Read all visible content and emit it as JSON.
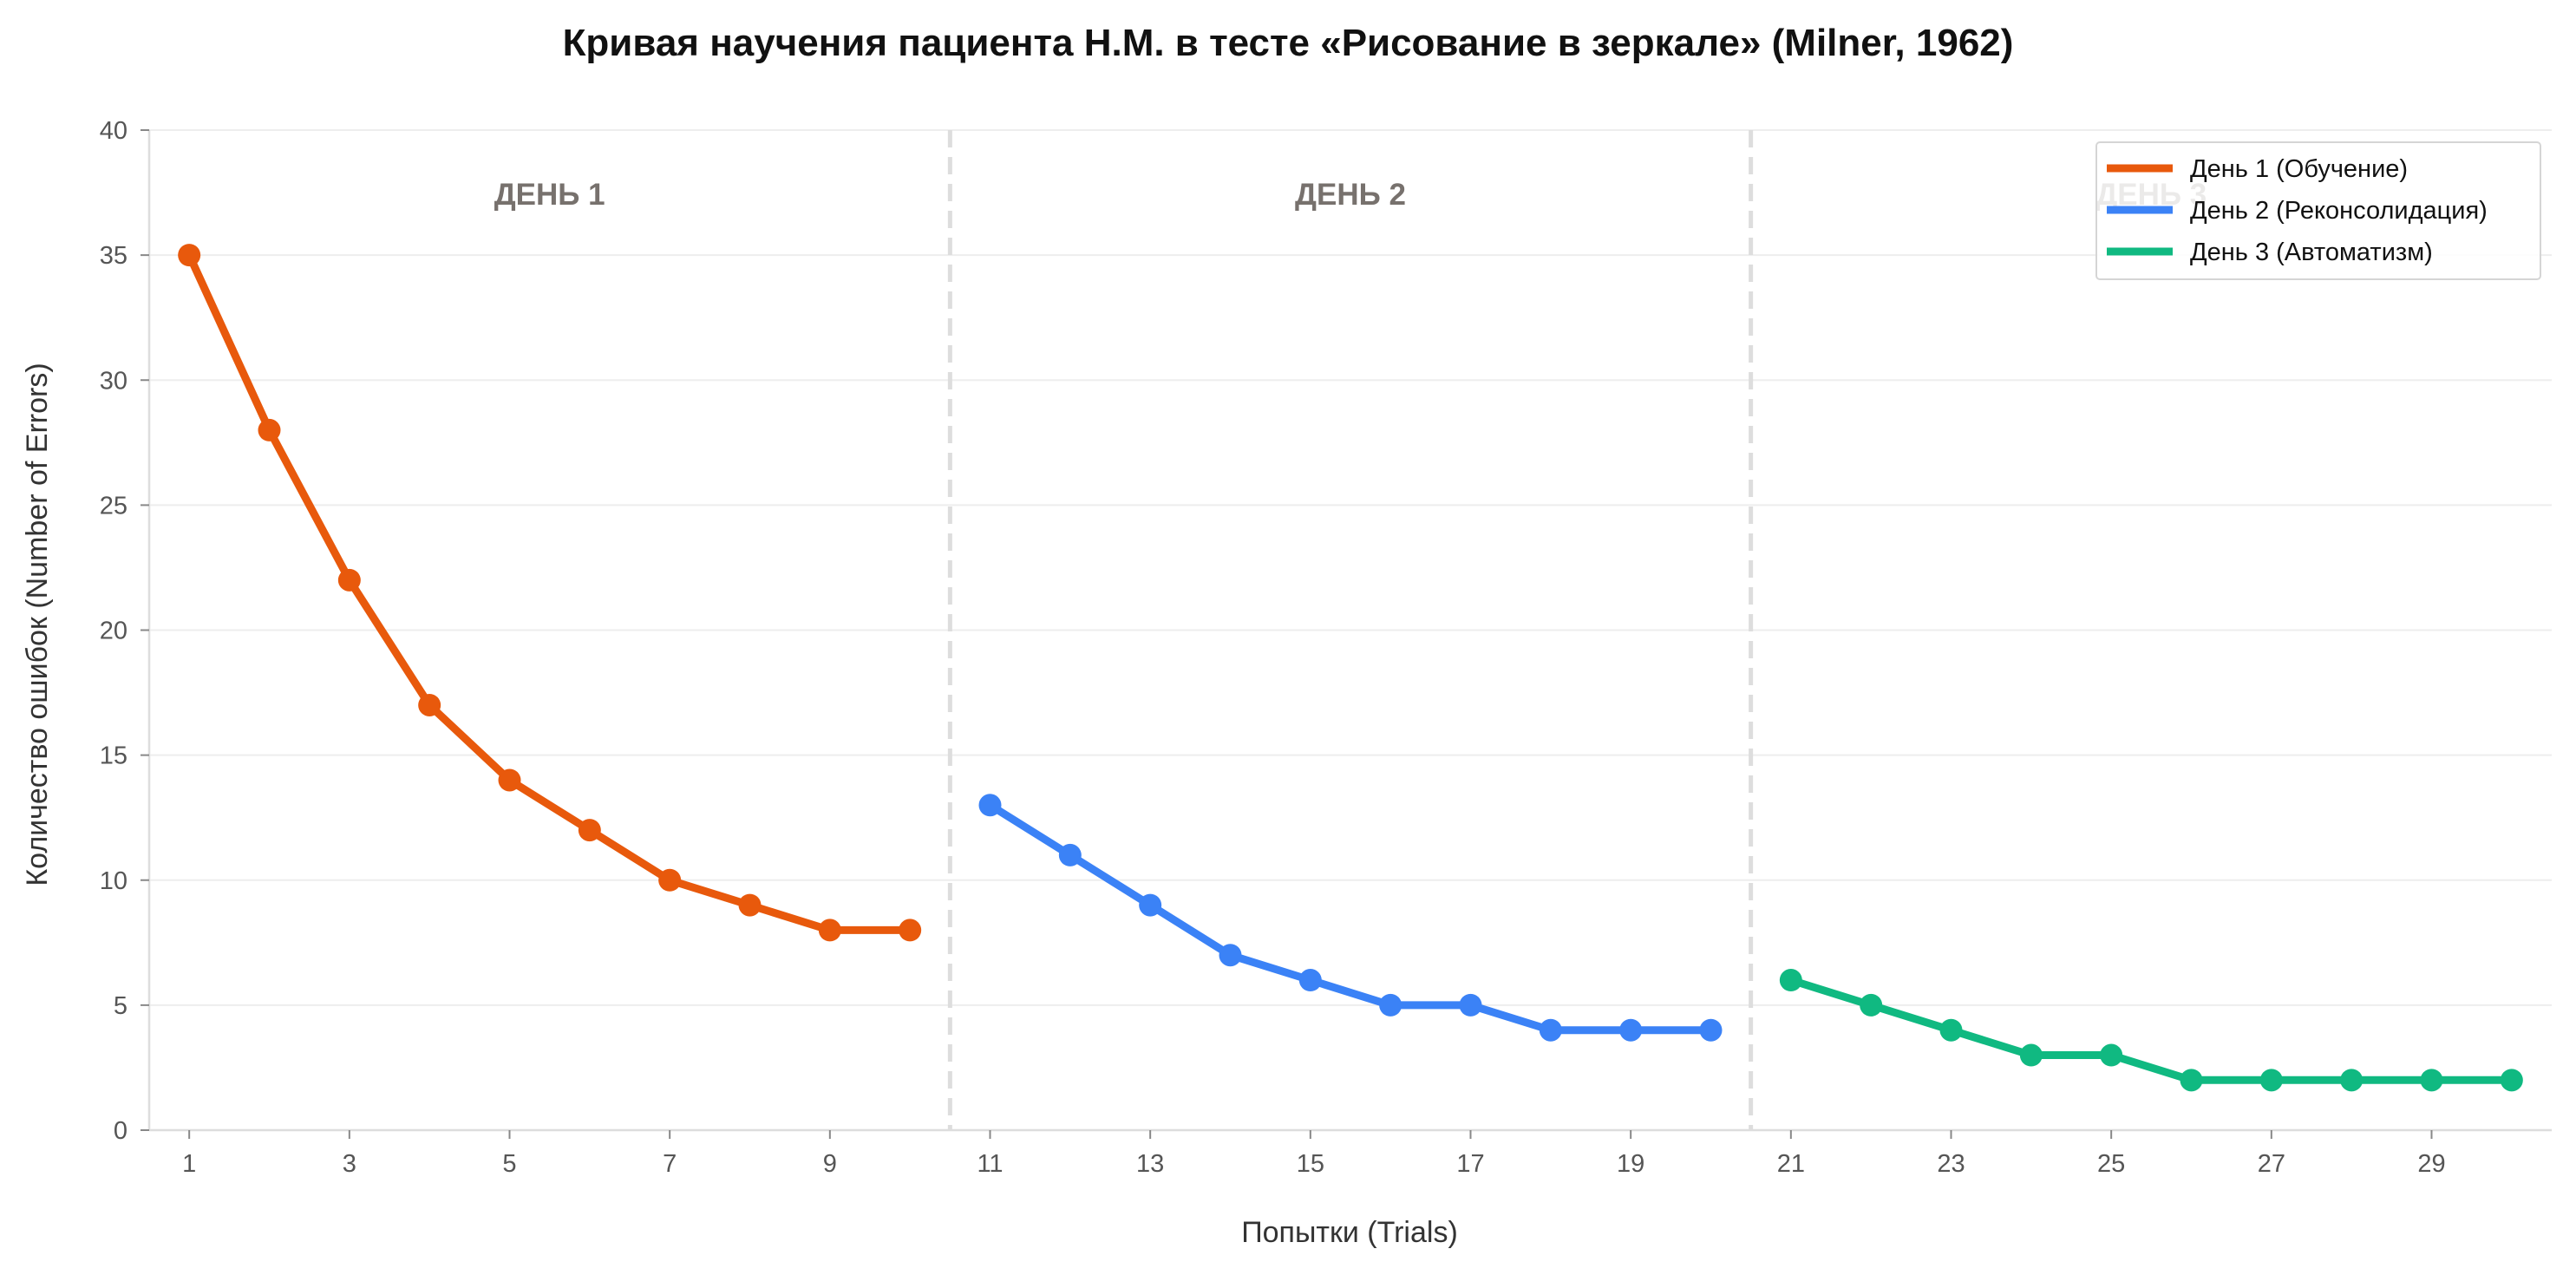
{
  "chart_data": {
    "type": "line",
    "title": "Кривая научения пациента Н.М. в тесте «Рисование в зеркале» (Milner, 1962)",
    "xlabel": "Попытки (Trials)",
    "ylabel": "Количество ошибок (Number of Errors)",
    "xlim": [
      0.5,
      30.5
    ],
    "ylim": [
      0,
      40
    ],
    "x_ticks": [
      1,
      3,
      5,
      7,
      9,
      11,
      13,
      15,
      17,
      19,
      21,
      23,
      25,
      27,
      29
    ],
    "y_ticks": [
      0,
      5,
      10,
      15,
      20,
      25,
      30,
      35,
      40
    ],
    "grid": "horizontal",
    "legend_position": "top-right",
    "day_separators": [
      10.5,
      20.5
    ],
    "day_labels": [
      {
        "text": "ДЕНЬ 1",
        "x": 5.5
      },
      {
        "text": "ДЕНЬ 2",
        "x": 15.5
      },
      {
        "text": "ДЕНЬ 3",
        "x": 25.5
      }
    ],
    "series": [
      {
        "name": "День 1 (Обучение)",
        "color": "#e8590c",
        "x": [
          1,
          2,
          3,
          4,
          5,
          6,
          7,
          8,
          9,
          10
        ],
        "y": [
          35,
          28,
          22,
          17,
          14,
          12,
          10,
          9,
          8,
          8
        ]
      },
      {
        "name": "День 2 (Реконсолидация)",
        "color": "#3b82f6",
        "x": [
          11,
          12,
          13,
          14,
          15,
          16,
          17,
          18,
          19,
          20
        ],
        "y": [
          13,
          11,
          9,
          7,
          6,
          5,
          5,
          4,
          4,
          4
        ]
      },
      {
        "name": "День 3 (Автоматизм)",
        "color": "#10b981",
        "x": [
          21,
          22,
          23,
          24,
          25,
          26,
          27,
          28,
          29,
          30
        ],
        "y": [
          6,
          5,
          4,
          3,
          3,
          2,
          2,
          2,
          2,
          2
        ]
      }
    ]
  }
}
